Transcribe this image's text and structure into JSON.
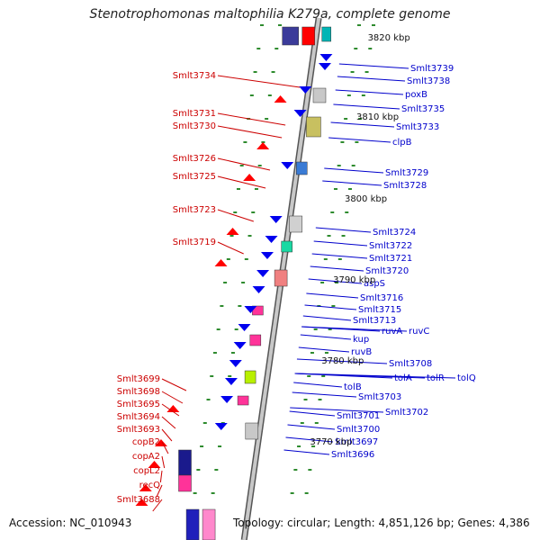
{
  "title": "Stenotrophomonas maltophilia K279a, complete genome",
  "footer": {
    "accession": "Accession: NC_010943",
    "stats": "Topology: circular; Length: 4,851,126 bp; Genes: 4,386"
  },
  "colors": {
    "backbone": "#a9a9a9",
    "backbone_edge": "#555555",
    "tick": "#2e8b2e",
    "reverse_strand": "#ff0000",
    "forward_strand": "#0000ee",
    "label_reverse": "#cc0000",
    "label_forward": "#0000cc",
    "kbp_label": "#111111"
  },
  "scale_labels": [
    "3820 kbp",
    "3810 kbp",
    "3800 kbp",
    "3790 kbp",
    "3780 kbp",
    "3770 kbp"
  ],
  "genes_left": [
    "Smlt3734",
    "Smlt3731",
    "Smlt3730",
    "Smlt3726",
    "Smlt3725",
    "Smlt3723",
    "Smlt3719",
    "Smlt3699",
    "Smlt3698",
    "Smlt3695",
    "Smlt3694",
    "Smlt3693",
    "copB2",
    "copA2",
    "copL2",
    "recQ",
    "Smlt3688"
  ],
  "genes_right": [
    "Smlt3739",
    "Smlt3738",
    "poxB",
    "Smlt3735",
    "Smlt3733",
    "clpB",
    "Smlt3729",
    "Smlt3728",
    "Smlt3724",
    "Smlt3722",
    "Smlt3721",
    "Smlt3720",
    "aspS",
    "Smlt3716",
    "Smlt3715",
    "Smlt3713",
    "kup",
    "ruvA",
    "ruvC",
    "ruvB",
    "Smlt3708",
    "tolA",
    "tolR",
    "tolQ",
    "tolB",
    "Smlt3703",
    "Smlt3702",
    "Smlt3701",
    "Smlt3700",
    "Smlt3697",
    "Smlt3696"
  ]
}
